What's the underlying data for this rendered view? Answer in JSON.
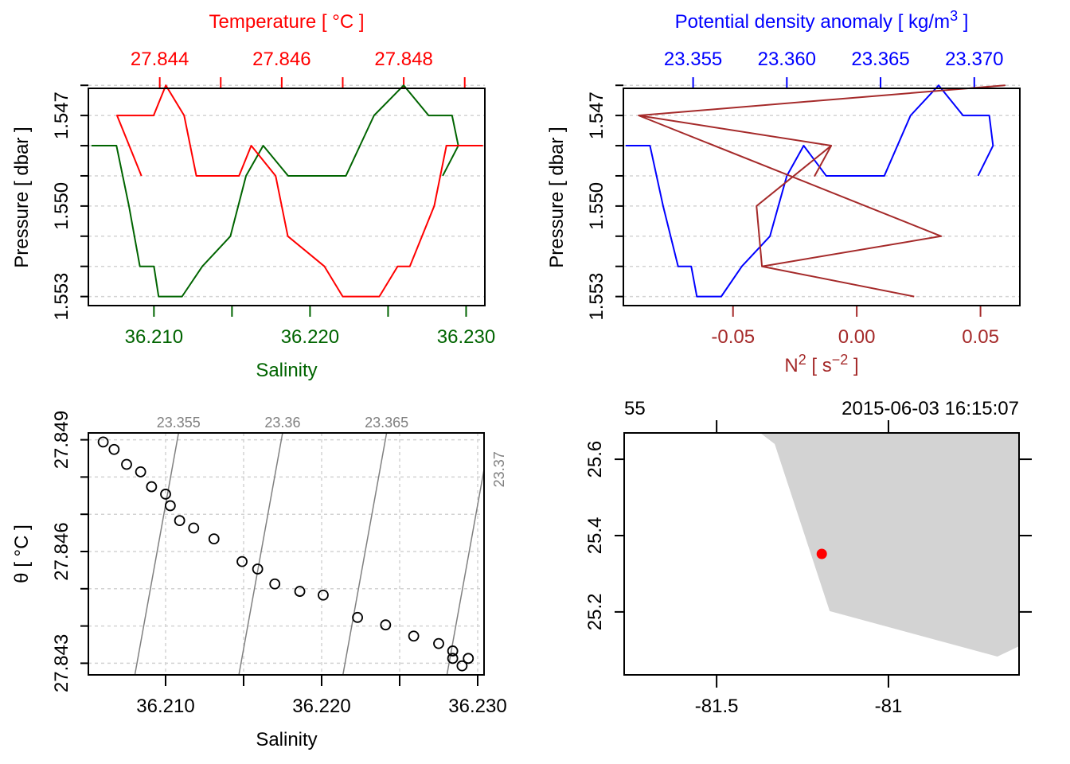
{
  "colors": {
    "temperature": "#ff0000",
    "salinity": "#006400",
    "density": "#0000ff",
    "n2": "#a52a2a",
    "grid": "#d3d3d3",
    "isopycnal": "#808080",
    "land": "#d3d3d3",
    "station": "#ff0000"
  },
  "chart_data": [
    {
      "type": "line",
      "panel": "temperature-salinity-profile",
      "title": "Temperature [ °C ]",
      "xlabel": "Salinity",
      "ylabel": "Pressure [ dbar ]",
      "y_reversed": true,
      "ylim": [
        1.5461,
        1.5533
      ],
      "grid": true,
      "y_ticks": [
        "1.547",
        "1.550",
        "1.553"
      ],
      "y_tick_values": [
        1.547,
        1.55,
        1.553
      ],
      "y_grid_values": [
        1.546,
        1.547,
        1.548,
        1.549,
        1.55,
        1.551,
        1.552,
        1.553
      ],
      "top_axis": {
        "range": [
          27.84283,
          27.84933
        ],
        "ticks": [
          27.844,
          27.845,
          27.846,
          27.847,
          27.848,
          27.849
        ],
        "labels": [
          "27.844",
          "",
          "27.846",
          "",
          "27.848",
          ""
        ]
      },
      "bottom_axis": {
        "range": [
          36.2058,
          36.2312
        ],
        "ticks": [
          36.21,
          36.215,
          36.22,
          36.225,
          36.23
        ],
        "labels": [
          "36.210",
          "",
          "36.220",
          "",
          "36.230"
        ]
      },
      "pressure": [
        1.548,
        1.548,
        1.55,
        1.552,
        1.552,
        1.553,
        1.553,
        1.552,
        1.551,
        1.549,
        1.548,
        1.549,
        1.549,
        1.547,
        1.546,
        1.547,
        1.547,
        1.548,
        1.549
      ],
      "series": [
        {
          "name": "Salinity",
          "axis": "bottom",
          "values": [
            36.206,
            36.2076,
            36.2084,
            36.2091,
            36.21,
            36.2103,
            36.2118,
            36.2131,
            36.2149,
            36.2159,
            36.217,
            36.2186,
            36.2223,
            36.2241,
            36.226,
            36.2276,
            36.2291,
            36.2295,
            36.2285
          ]
        },
        {
          "name": "Temperature",
          "axis": "top",
          "values": [
            27.8493,
            27.8487,
            27.8485,
            27.8481,
            27.8479,
            27.8476,
            27.847,
            27.8467,
            27.8461,
            27.8459,
            27.8455,
            27.8453,
            27.8446,
            27.8444,
            27.8441,
            27.8439,
            27.8433,
            27.8435,
            27.8437
          ]
        }
      ]
    },
    {
      "type": "line",
      "panel": "density-n2-profile",
      "title": "Potential density anomaly [ kg/m³ ]",
      "xlabel": "N² [ s⁻² ]",
      "ylabel": "Pressure [ dbar ]",
      "y_reversed": true,
      "ylim": [
        1.5461,
        1.5533
      ],
      "grid": true,
      "y_ticks": [
        "1.547",
        "1.550",
        "1.553"
      ],
      "y_tick_values": [
        1.547,
        1.55,
        1.553
      ],
      "y_grid_values": [
        1.546,
        1.547,
        1.548,
        1.549,
        1.55,
        1.551,
        1.552,
        1.553
      ],
      "top_axis": {
        "range": [
          23.35128,
          23.37243
        ],
        "ticks": [
          23.355,
          23.36,
          23.365,
          23.37
        ],
        "labels": [
          "23.355",
          "23.360",
          "23.365",
          "23.370"
        ]
      },
      "bottom_axis": {
        "range": [
          -0.0943,
          0.0659
        ],
        "ticks": [
          -0.05,
          0.0,
          0.05
        ],
        "labels": [
          "-0.05",
          "0.00",
          "0.05"
        ]
      },
      "series": [
        {
          "name": "Potential density anomaly",
          "axis": "top",
          "pressure": [
            1.548,
            1.548,
            1.55,
            1.552,
            1.552,
            1.553,
            1.553,
            1.552,
            1.551,
            1.549,
            1.548,
            1.549,
            1.549,
            1.547,
            1.546,
            1.547,
            1.547,
            1.548,
            1.549
          ],
          "values": [
            23.3514,
            23.3527,
            23.3534,
            23.3542,
            23.3549,
            23.3552,
            23.3565,
            23.3576,
            23.3591,
            23.36,
            23.3609,
            23.3621,
            23.3652,
            23.3666,
            23.3681,
            23.3694,
            23.3708,
            23.371,
            23.3702
          ]
        },
        {
          "name": "N²",
          "axis": "bottom",
          "pressure": [
            1.553,
            1.552,
            1.551,
            1.547,
            1.546,
            1.547,
            1.548,
            1.549,
            1.548,
            1.55,
            1.552
          ],
          "values": [
            0.0232,
            -0.0383,
            0.0341,
            -0.0881,
            0.0598,
            -0.0881,
            -0.0103,
            -0.017,
            -0.0103,
            -0.0405,
            -0.0383
          ]
        }
      ]
    },
    {
      "type": "scatter",
      "panel": "ts-diagram",
      "xlabel": "Salinity",
      "ylabel": "θ [ °C ]",
      "xlim": [
        36.2058,
        36.2253
      ],
      "ylim": [
        27.84271,
        27.84917
      ],
      "grid": true,
      "x_ticks": [
        36.21,
        36.215,
        36.22,
        36.225,
        36.23
      ],
      "x_tick_labels": [
        "36.210",
        "",
        "36.220",
        "",
        "36.230"
      ],
      "y_ticks": [
        27.849,
        27.848,
        27.847,
        27.846,
        27.845,
        27.844,
        27.843
      ],
      "y_tick_labels": [
        "27.849",
        "",
        "",
        "27.846",
        "",
        "",
        "27.843"
      ],
      "isopycnals": [
        23.355,
        23.36,
        23.365,
        23.37
      ],
      "isopycnal_labels": [
        "23.355",
        "23.36",
        "23.365",
        "23.37"
      ],
      "salinity": [
        36.206,
        36.2067,
        36.2075,
        36.2084,
        36.2091,
        36.21,
        36.2103,
        36.2109,
        36.2118,
        36.2131,
        36.2149,
        36.2159,
        36.217,
        36.2186,
        36.2201,
        36.2223,
        36.2241,
        36.2259,
        36.2275,
        36.2284,
        36.2284,
        36.229,
        36.2294
      ],
      "theta": [
        27.84894,
        27.84874,
        27.84834,
        27.84814,
        27.84774,
        27.84754,
        27.84723,
        27.84683,
        27.84663,
        27.84634,
        27.84573,
        27.84553,
        27.84513,
        27.84493,
        27.84483,
        27.84423,
        27.84403,
        27.84373,
        27.84353,
        27.84333,
        27.84313,
        27.84293,
        27.84313
      ]
    },
    {
      "type": "map",
      "panel": "station-map",
      "station_label": "55",
      "time_label": "2015-06-03 16:15:07",
      "lon_range": [
        -81.769,
        -80.62
      ],
      "lat_range": [
        25.035,
        25.669
      ],
      "lon_ticks": [
        -81.5,
        -81.0
      ],
      "lon_tick_labels": [
        "-81.5",
        "-81"
      ],
      "lat_ticks": [
        25.6,
        25.4,
        25.2
      ],
      "lat_tick_labels": [
        "25.6",
        "25.4",
        "25.2"
      ],
      "coastline": [
        [
          -81.373,
          25.669
        ],
        [
          -81.331,
          25.64
        ],
        [
          -81.171,
          25.202
        ],
        [
          -80.683,
          25.083
        ],
        [
          -80.62,
          25.11
        ],
        [
          -80.62,
          25.669
        ]
      ],
      "station": {
        "lon": -81.194,
        "lat": 25.352
      }
    }
  ]
}
